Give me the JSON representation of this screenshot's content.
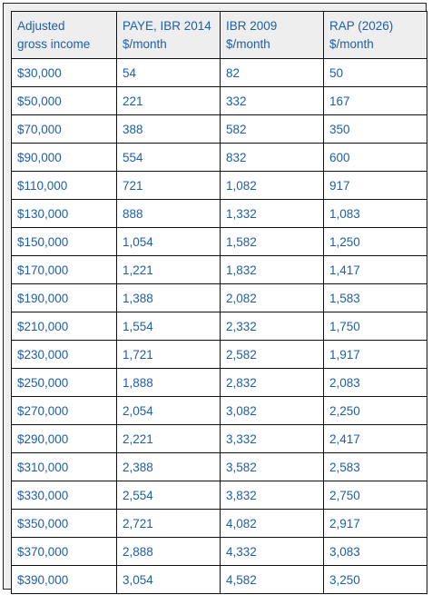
{
  "table": {
    "headers": [
      {
        "line1": "Adjusted",
        "line2": "gross income"
      },
      {
        "line1": "PAYE, IBR 2014",
        "line2": "$/month"
      },
      {
        "line1": "IBR 2009",
        "line2": "$/month"
      },
      {
        "line1": "RAP (2026)",
        "line2": "$/month"
      }
    ],
    "rows": [
      [
        "$30,000",
        "54",
        "82",
        "50"
      ],
      [
        "$50,000",
        "221",
        "332",
        "167"
      ],
      [
        "$70,000",
        "388",
        "582",
        "350"
      ],
      [
        "$90,000",
        "554",
        "832",
        "600"
      ],
      [
        "$110,000",
        "721",
        "1,082",
        "917"
      ],
      [
        "$130,000",
        "888",
        "1,332",
        "1,083"
      ],
      [
        "$150,000",
        "1,054",
        "1,582",
        "1,250"
      ],
      [
        "$170,000",
        "1,221",
        "1,832",
        "1,417"
      ],
      [
        "$190,000",
        "1,388",
        "2,082",
        "1,583"
      ],
      [
        "$210,000",
        "1,554",
        "2,332",
        "1,750"
      ],
      [
        "$230,000",
        "1,721",
        "2,582",
        "1,917"
      ],
      [
        "$250,000",
        "1,888",
        "2,832",
        "2,083"
      ],
      [
        "$270,000",
        "2,054",
        "3,082",
        "2,250"
      ],
      [
        "$290,000",
        "2,221",
        "3,332",
        "2,417"
      ],
      [
        "$310,000",
        "2,388",
        "3,582",
        "2,583"
      ],
      [
        "$330,000",
        "2,554",
        "3,832",
        "2,750"
      ],
      [
        "$350,000",
        "2,721",
        "4,082",
        "2,917"
      ],
      [
        "$370,000",
        "2,888",
        "4,332",
        "3,083"
      ],
      [
        "$390,000",
        "3,054",
        "4,582",
        "3,250"
      ]
    ]
  }
}
